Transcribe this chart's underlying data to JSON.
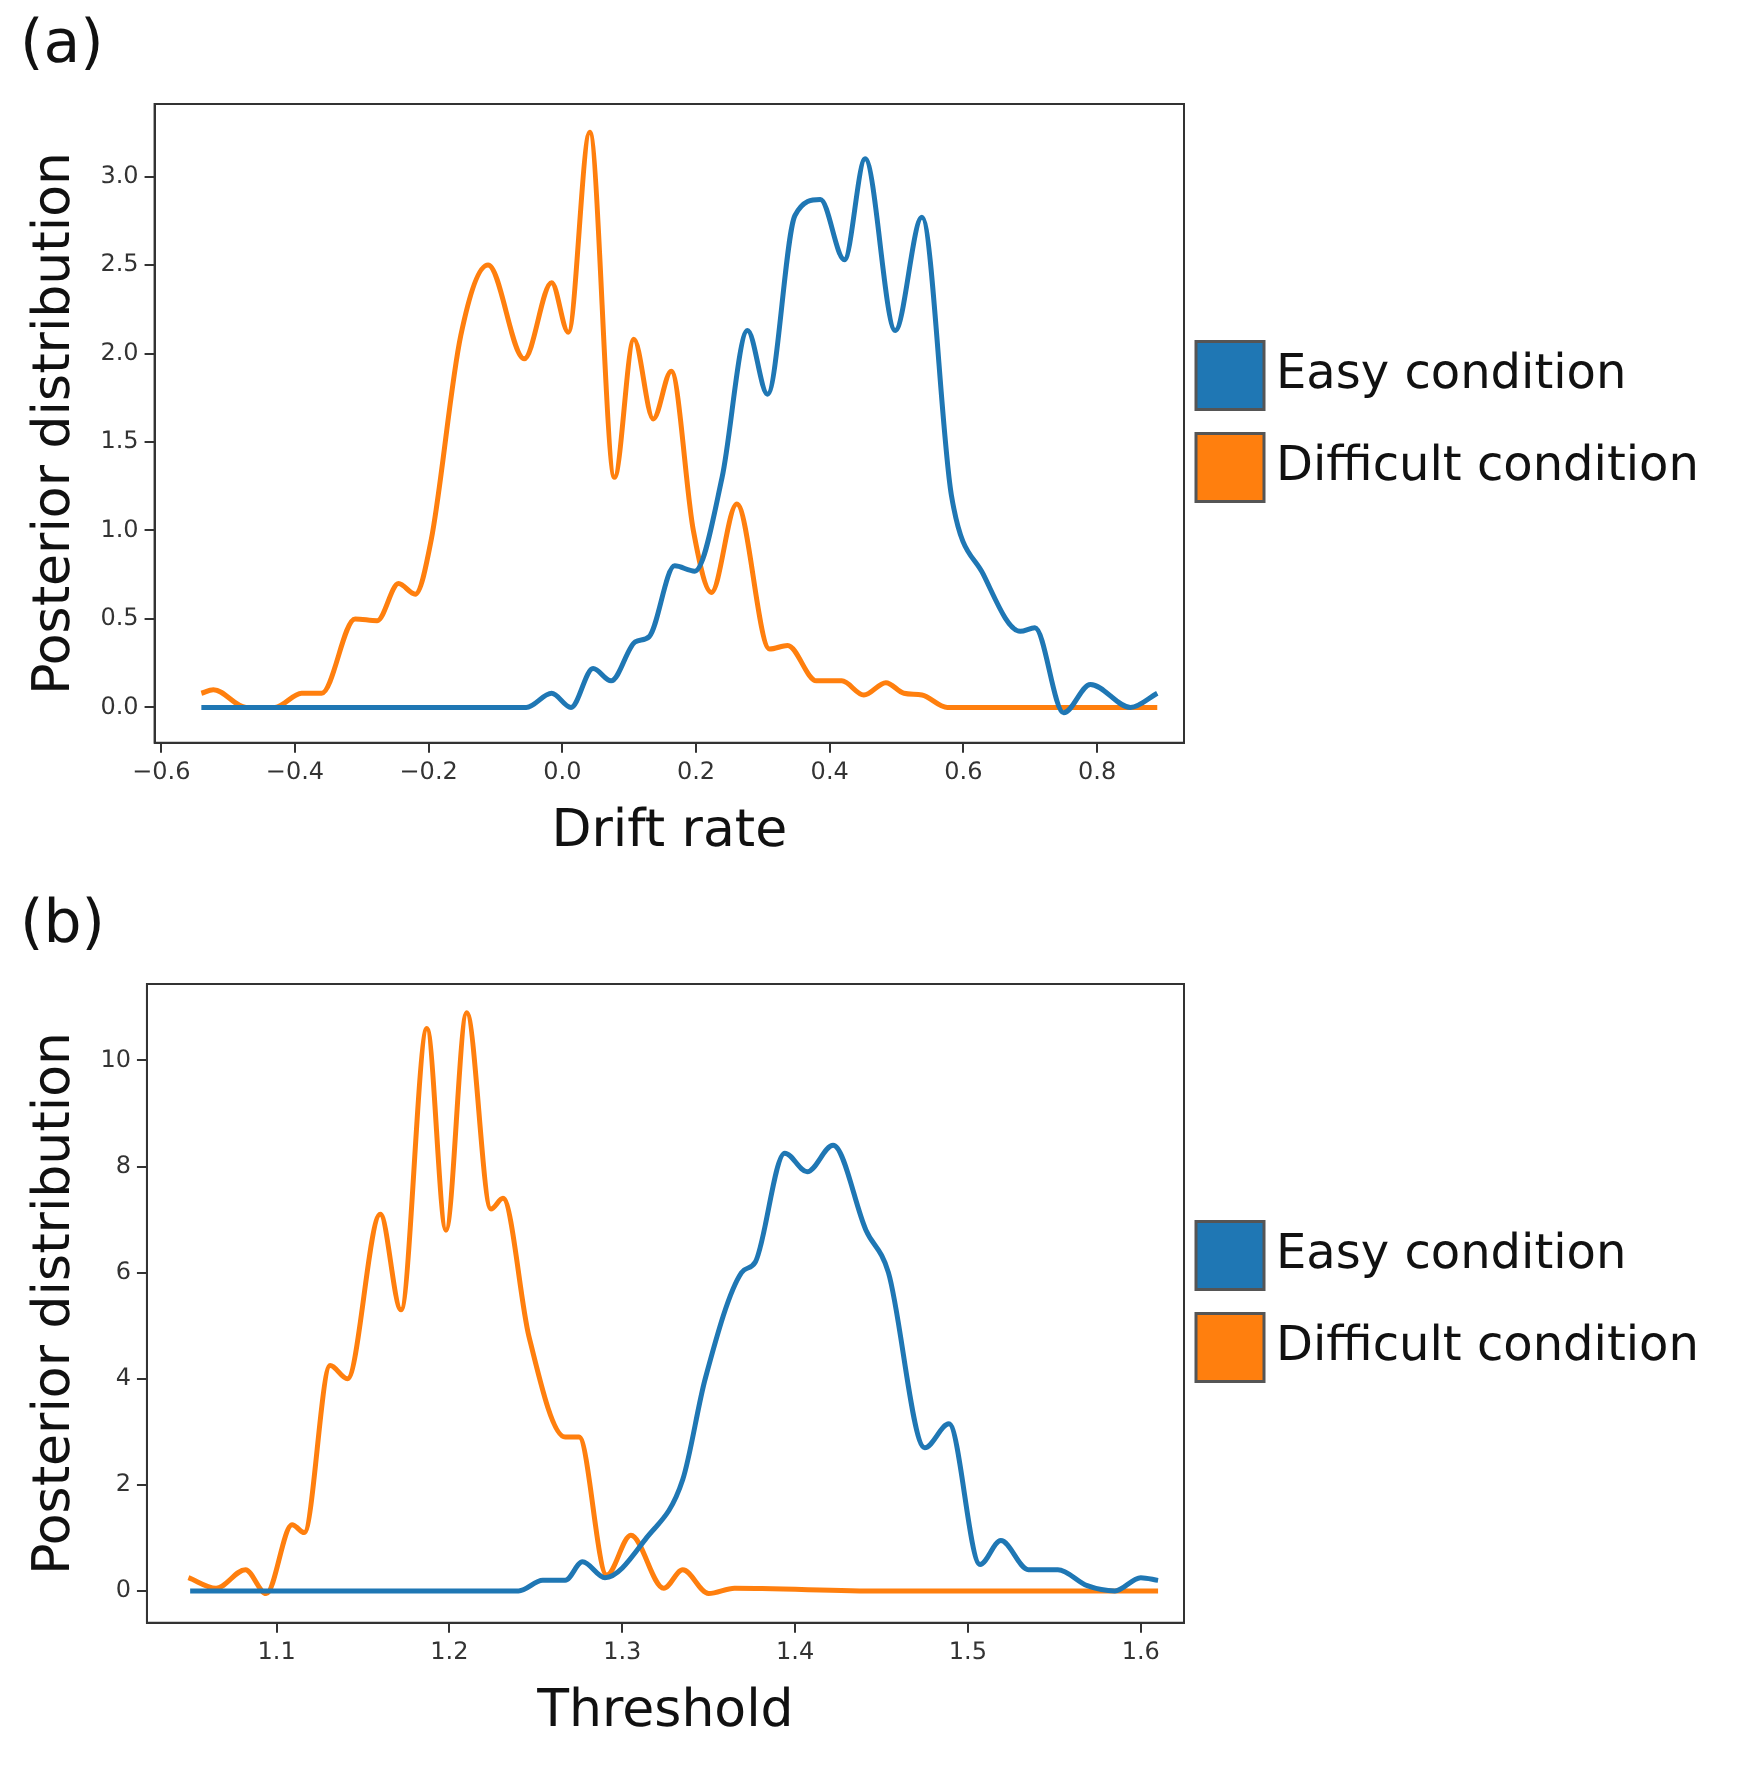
{
  "chart_data": [
    {
      "type": "line",
      "annotations": [
        "(a)"
      ],
      "xlabel": "Drift rate",
      "ylabel": "Posterior distribution",
      "legend": "right",
      "grid": false,
      "marker": "none",
      "xlim": [
        -0.61,
        0.93
      ],
      "ylim": [
        -0.2,
        3.41
      ],
      "xticks": [
        {
          "value": -0.6,
          "label": "−0.6"
        },
        {
          "value": -0.4,
          "label": "−0.4"
        },
        {
          "value": -0.2,
          "label": "−0.2"
        },
        {
          "value": 0,
          "label": "0.0"
        },
        {
          "value": 0.2,
          "label": "0.2"
        },
        {
          "value": 0.4,
          "label": "0.4"
        },
        {
          "value": 0.6,
          "label": "0.6"
        },
        {
          "value": 0.8,
          "label": "0.8"
        }
      ],
      "yticks": [
        {
          "value": 0,
          "label": "0.0"
        },
        {
          "value": 0.5,
          "label": "0.5"
        },
        {
          "value": 1,
          "label": "1.0"
        },
        {
          "value": 1.5,
          "label": "1.5"
        },
        {
          "value": 2,
          "label": "2.0"
        },
        {
          "value": 2.5,
          "label": "2.5"
        },
        {
          "value": 3,
          "label": "3.0"
        }
      ],
      "series": [
        {
          "name": "Easy condition",
          "color": "#1f77b4",
          "x": [
            -0.54,
            -0.3,
            -0.08,
            -0.054,
            -0.016,
            0.013,
            0.046,
            0.073,
            0.109,
            0.13,
            0.168,
            0.198,
            0.239,
            0.277,
            0.307,
            0.348,
            0.386,
            0.422,
            0.453,
            0.498,
            0.538,
            0.582,
            0.63,
            0.685,
            0.707,
            0.75,
            0.79,
            0.85,
            0.89
          ],
          "values": [
            0,
            0,
            0,
            0,
            0.08,
            0,
            0.22,
            0.15,
            0.37,
            0.4,
            0.8,
            0.77,
            1.3,
            2.13,
            1.77,
            2.78,
            2.87,
            2.53,
            3.1,
            2.13,
            2.77,
            1.2,
            0.75,
            0.43,
            0.45,
            -0.03,
            0.13,
            0,
            0.08
          ]
        },
        {
          "name": "Difficult condition",
          "color": "#ff7f0e",
          "x": [
            -0.54,
            -0.522,
            -0.473,
            -0.43,
            -0.39,
            -0.36,
            -0.31,
            -0.277,
            -0.245,
            -0.22,
            -0.196,
            -0.152,
            -0.111,
            -0.057,
            -0.016,
            0.009,
            0.041,
            0.078,
            0.107,
            0.136,
            0.163,
            0.196,
            0.223,
            0.261,
            0.31,
            0.337,
            0.38,
            0.418,
            0.451,
            0.484,
            0.511,
            0.538,
            0.576,
            0.7,
            0.89
          ],
          "values": [
            0.08,
            0.1,
            0,
            0,
            0.08,
            0.08,
            0.5,
            0.49,
            0.7,
            0.64,
            0.95,
            2.1,
            2.5,
            1.97,
            2.4,
            2.12,
            3.25,
            1.3,
            2.08,
            1.63,
            1.9,
            1,
            0.65,
            1.15,
            0.33,
            0.35,
            0.15,
            0.15,
            0.07,
            0.14,
            0.08,
            0.07,
            0,
            0,
            0
          ]
        }
      ]
    },
    {
      "type": "line",
      "annotations": [
        "(b)"
      ],
      "xlabel": "Threshold",
      "ylabel": "Posterior distribution",
      "legend": "right",
      "grid": false,
      "marker": "none",
      "xlim": [
        1.025,
        1.625
      ],
      "ylim": [
        -0.6,
        11.44
      ],
      "xticks": [
        {
          "value": 1.1,
          "label": "1.1"
        },
        {
          "value": 1.2,
          "label": "1.2"
        },
        {
          "value": 1.3,
          "label": "1.3"
        },
        {
          "value": 1.4,
          "label": "1.4"
        },
        {
          "value": 1.5,
          "label": "1.5"
        },
        {
          "value": 1.6,
          "label": "1.6"
        }
      ],
      "yticks": [
        0,
        2,
        4,
        6,
        8,
        10
      ],
      "series": [
        {
          "name": "Easy condition",
          "color": "#1f77b4",
          "x": [
            1.05,
            1.15,
            1.24,
            1.254,
            1.267,
            1.277,
            1.29,
            1.314,
            1.335,
            1.348,
            1.369,
            1.377,
            1.394,
            1.407,
            1.422,
            1.441,
            1.454,
            1.475,
            1.489,
            1.507,
            1.519,
            1.535,
            1.552,
            1.569,
            1.585,
            1.6,
            1.61
          ],
          "values": [
            0,
            0,
            0,
            0.2,
            0.2,
            0.55,
            0.25,
            1,
            2.1,
            4,
            6,
            6.2,
            8.25,
            7.9,
            8.4,
            6.8,
            6,
            2.7,
            3.15,
            0.5,
            0.95,
            0.4,
            0.4,
            0.1,
            0,
            0.25,
            0.2
          ]
        },
        {
          "name": "Difficult condition",
          "color": "#ff7f0e",
          "x": [
            1.049,
            1.065,
            1.082,
            1.094,
            1.109,
            1.116,
            1.131,
            1.141,
            1.16,
            1.172,
            1.187,
            1.198,
            1.21,
            1.224,
            1.231,
            1.246,
            1.267,
            1.275,
            1.291,
            1.305,
            1.324,
            1.335,
            1.35,
            1.365,
            1.45,
            1.61
          ],
          "values": [
            0.25,
            0.05,
            0.4,
            -0.05,
            1.25,
            1.1,
            4.25,
            4,
            7.1,
            5.3,
            10.6,
            6.8,
            10.9,
            7.2,
            7.4,
            4.8,
            2.9,
            2.9,
            0.3,
            1.05,
            0.05,
            0.4,
            -0.05,
            0.05,
            0,
            0
          ]
        }
      ]
    }
  ]
}
